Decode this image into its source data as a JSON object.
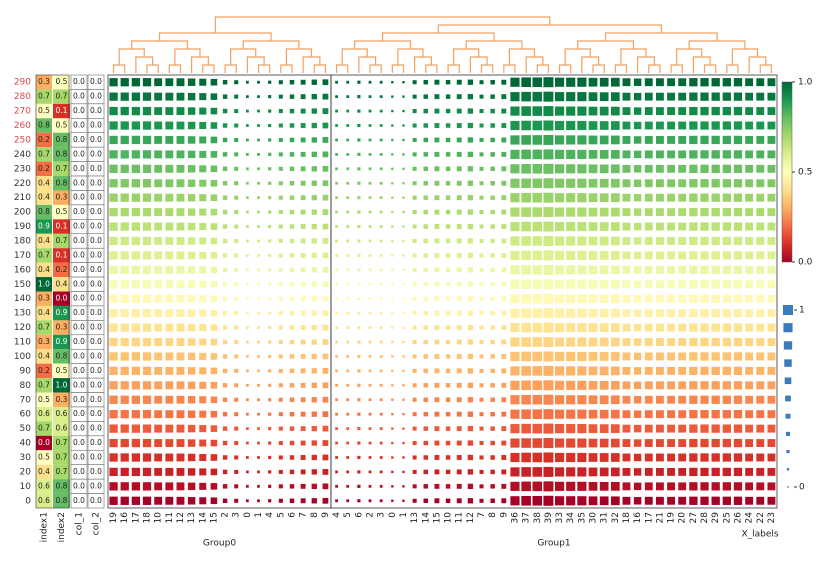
{
  "chart_data": {
    "type": "heatmap",
    "colormap": "RdYlGn",
    "rows": [
      290,
      280,
      270,
      260,
      250,
      240,
      230,
      220,
      210,
      200,
      190,
      180,
      170,
      160,
      150,
      140,
      130,
      120,
      110,
      100,
      90,
      80,
      70,
      60,
      50,
      40,
      30,
      20,
      10,
      0
    ],
    "row_label_colors": [
      "#e0474c",
      "#e0474c",
      "#e0474c",
      "#e0474c",
      "#e0474c",
      "#333333",
      "#333333",
      "#333333",
      "#333333",
      "#333333",
      "#333333",
      "#333333",
      "#333333",
      "#333333",
      "#333333",
      "#333333",
      "#333333",
      "#333333",
      "#333333",
      "#333333",
      "#333333",
      "#333333",
      "#333333",
      "#333333",
      "#333333",
      "#333333",
      "#333333",
      "#333333",
      "#333333",
      "#333333"
    ],
    "row_color_values": [
      1.0,
      0.97,
      0.93,
      0.9,
      0.86,
      0.83,
      0.79,
      0.76,
      0.72,
      0.69,
      0.66,
      0.62,
      0.59,
      0.55,
      0.52,
      0.48,
      0.45,
      0.41,
      0.38,
      0.34,
      0.31,
      0.28,
      0.24,
      0.21,
      0.17,
      0.14,
      0.1,
      0.07,
      0.03,
      0.0
    ],
    "column_groups": [
      {
        "name": "Group0",
        "labels": [
          19,
          16,
          17,
          18,
          10,
          11,
          12,
          13,
          14,
          15,
          2,
          3,
          0,
          1,
          4,
          5,
          6,
          7,
          8,
          9
        ],
        "size_values": [
          0.8,
          0.8,
          0.8,
          0.8,
          0.75,
          0.75,
          0.75,
          0.7,
          0.65,
          0.6,
          0.35,
          0.3,
          0.15,
          0.15,
          0.2,
          0.3,
          0.35,
          0.4,
          0.45,
          0.5
        ]
      },
      {
        "name": "Group1",
        "labels": [
          4,
          5,
          6,
          2,
          3,
          0,
          1,
          13,
          14,
          15,
          10,
          11,
          12,
          7,
          8,
          9,
          36,
          37,
          38,
          39,
          33,
          34,
          35,
          30,
          31,
          32,
          18,
          16,
          17,
          21,
          19,
          20,
          27,
          28,
          29,
          25,
          26,
          24,
          22,
          23
        ],
        "size_values": [
          0.15,
          0.15,
          0.2,
          0.15,
          0.15,
          0.1,
          0.1,
          0.3,
          0.35,
          0.4,
          0.35,
          0.4,
          0.45,
          0.3,
          0.35,
          0.4,
          0.9,
          0.95,
          0.95,
          1.0,
          0.9,
          0.9,
          0.9,
          0.85,
          0.85,
          0.85,
          0.75,
          0.7,
          0.75,
          0.75,
          0.75,
          0.75,
          0.8,
          0.8,
          0.8,
          0.8,
          0.8,
          0.75,
          0.75,
          0.75
        ]
      }
    ],
    "x_label": "X_labels",
    "annotations": [
      {
        "name": "index1",
        "cmap": "RdYlGn",
        "values": [
          0.3,
          0.7,
          0.5,
          0.8,
          0.2,
          0.7,
          0.2,
          0.4,
          0.4,
          0.8,
          0.9,
          0.4,
          0.7,
          0.4,
          1.0,
          0.3,
          0.4,
          0.7,
          0.3,
          0.4,
          0.2,
          0.7,
          0.5,
          0.6,
          0.7,
          0.0,
          0.5,
          0.4,
          0.6,
          0.6
        ],
        "value_labels": [
          "0.3",
          "0.7",
          "0.5",
          "0.8",
          "0.2",
          "0.7",
          "0.2",
          "0.4",
          "0.4",
          "0.8",
          "0.9",
          "0.4",
          "0.7",
          "0.4",
          "1.0",
          "0.3",
          "0.4",
          "0.7",
          "0.3",
          "0.4",
          "0.2",
          "0.7",
          "0.5",
          "0.6",
          "0.7",
          "0.0",
          "0.5",
          "0.4",
          "0.6",
          "0.6"
        ]
      },
      {
        "name": "index2",
        "cmap": "RdYlGn",
        "values": [
          0.5,
          0.7,
          0.1,
          0.5,
          0.8,
          0.8,
          0.7,
          0.8,
          0.3,
          0.5,
          0.1,
          0.7,
          0.1,
          0.2,
          0.4,
          0.0,
          0.9,
          0.3,
          0.9,
          0.8,
          0.5,
          1.0,
          0.3,
          0.6,
          0.6,
          0.7,
          0.7,
          0.7,
          0.8,
          0.8
        ],
        "value_labels": [
          "0.5",
          "0.7",
          "0.1",
          "0.5",
          "0.8",
          "0.8",
          "0.7",
          "0.8",
          "0.3",
          "0.5",
          "0.1",
          "0.7",
          "0.1",
          "0.2",
          "0.4",
          "0.0",
          "0.9",
          "0.3",
          "0.9",
          "0.8",
          "0.5",
          "1.0",
          "0.3",
          "0.6",
          "0.6",
          "0.7",
          "0.7",
          "0.7",
          "0.8",
          "0.8"
        ]
      },
      {
        "name": "col_1",
        "cmap": "none",
        "values": [
          0,
          0,
          0,
          0,
          0,
          0,
          0,
          0,
          0,
          0,
          0,
          0,
          0,
          0,
          0,
          0,
          0,
          0,
          0,
          0,
          0,
          0,
          0,
          0,
          0,
          0,
          0,
          0,
          0,
          0
        ],
        "value_labels": [
          "0.0",
          "0.0",
          "0.0",
          "0.0",
          "0.0",
          "0.0",
          "0.0",
          "0.0",
          "0.0",
          "0.0",
          "0.0",
          "0.0",
          "0.0",
          "0.0",
          "0.0",
          "0.0",
          "0.0",
          "0.0",
          "0.0",
          "0.0",
          "0.0",
          "0.0",
          "0.0",
          "0.0",
          "0.0",
          "0.0",
          "0.0",
          "0.0",
          "0.0",
          "0.0"
        ]
      },
      {
        "name": "col_2",
        "cmap": "none",
        "values": [
          0,
          0,
          0,
          0,
          0,
          0,
          0,
          0,
          0,
          0,
          0,
          0,
          0,
          0,
          0,
          0,
          0,
          0,
          0,
          0,
          0,
          0,
          0,
          0,
          0,
          0,
          0,
          0,
          0,
          0
        ],
        "value_labels": [
          "0.0",
          "0.0",
          "0.0",
          "0.0",
          "0.0",
          "0.0",
          "0.0",
          "0.0",
          "0.0",
          "0.0",
          "0.0",
          "0.0",
          "0.0",
          "0.0",
          "0.0",
          "0.0",
          "0.0",
          "0.0",
          "0.0",
          "0.0",
          "0.0",
          "0.0",
          "0.0",
          "0.0",
          "0.0",
          "0.0",
          "0.0",
          "0.0",
          "0.0",
          "0.0"
        ]
      }
    ],
    "colorbar": {
      "lim": [
        0,
        1
      ],
      "ticks": [
        {
          "value": 1,
          "label": "1.0"
        },
        0.5,
        {
          "value": 0,
          "label": "0.0"
        }
      ]
    },
    "size_legend": {
      "lim": [
        0,
        1
      ],
      "ticks": [
        1,
        0
      ]
    }
  }
}
